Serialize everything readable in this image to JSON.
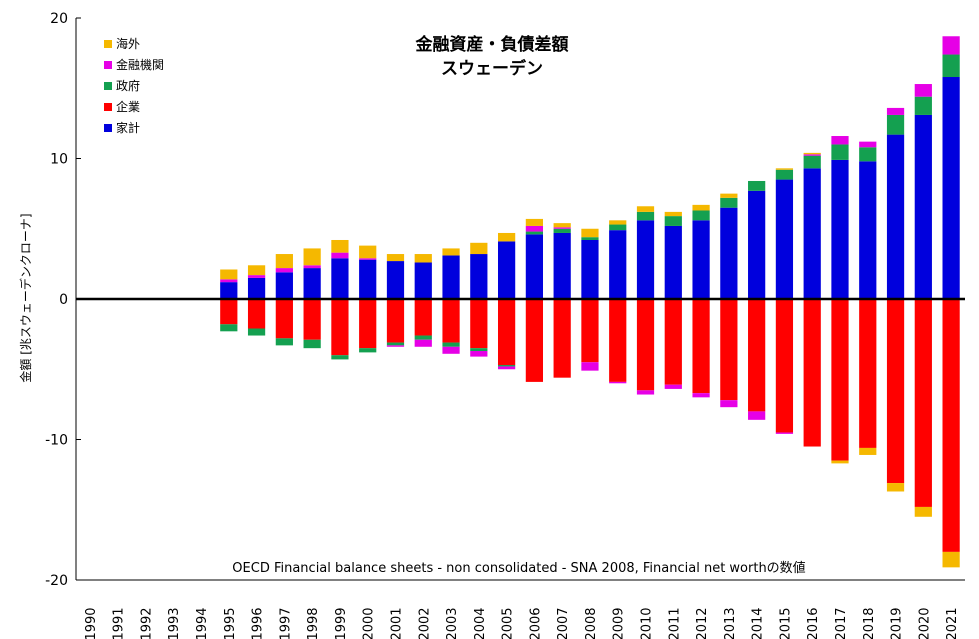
{
  "chart_data": {
    "type": "bar",
    "stacked": true,
    "title": "金融資産・負債差額",
    "subtitle": "スウェーデン",
    "ylabel": "金額 [兆スウェーデンクローナ]",
    "xlabel": "",
    "source_note": "OECD Financial balance sheets - non consolidated - SNA 2008, Financial net worthの数値",
    "ylim": [
      -20,
      20
    ],
    "yticks": [
      -20,
      -10,
      0,
      10,
      20
    ],
    "grid": false,
    "legend_position": "top-left",
    "categories": [
      "1990",
      "1991",
      "1992",
      "1993",
      "1994",
      "1995",
      "1996",
      "1997",
      "1998",
      "1999",
      "2000",
      "2001",
      "2002",
      "2003",
      "2004",
      "2005",
      "2006",
      "2007",
      "2008",
      "2009",
      "2010",
      "2011",
      "2012",
      "2013",
      "2014",
      "2015",
      "2016",
      "2017",
      "2018",
      "2019",
      "2020",
      "2021"
    ],
    "series": [
      {
        "name": "海外",
        "color": "#f5b800",
        "values": [
          null,
          null,
          null,
          null,
          null,
          0.7,
          0.7,
          1.0,
          1.2,
          0.9,
          0.9,
          0.5,
          0.6,
          0.5,
          0.8,
          0.6,
          0.5,
          0.3,
          0.6,
          0.3,
          0.4,
          0.3,
          0.4,
          0.3,
          0.0,
          0.1,
          0.1,
          -0.2,
          -0.5,
          -0.6,
          -0.7,
          -1.1
        ]
      },
      {
        "name": "金融機関",
        "color": "#e600e6",
        "values": [
          null,
          null,
          null,
          null,
          null,
          0.2,
          0.2,
          0.3,
          0.2,
          0.4,
          0.1,
          -0.1,
          -0.5,
          -0.5,
          -0.4,
          -0.2,
          0.4,
          0.1,
          -0.6,
          -0.1,
          -0.3,
          -0.3,
          -0.3,
          -0.5,
          -0.6,
          -0.1,
          0.1,
          0.6,
          0.4,
          0.5,
          0.9,
          1.3
        ]
      },
      {
        "name": "政府",
        "color": "#14a050",
        "values": [
          null,
          null,
          null,
          null,
          null,
          -0.5,
          -0.5,
          -0.5,
          -0.6,
          -0.3,
          -0.3,
          -0.2,
          -0.3,
          -0.3,
          -0.2,
          -0.1,
          0.2,
          0.3,
          0.2,
          0.4,
          0.6,
          0.7,
          0.7,
          0.7,
          0.7,
          0.7,
          0.9,
          1.1,
          1.0,
          1.4,
          1.3,
          1.6
        ]
      },
      {
        "name": "企業",
        "color": "#ff0000",
        "values": [
          null,
          null,
          null,
          null,
          null,
          -1.8,
          -2.1,
          -2.8,
          -2.9,
          -4.0,
          -3.5,
          -3.1,
          -2.6,
          -3.1,
          -3.5,
          -4.7,
          -5.9,
          -5.6,
          -4.5,
          -5.9,
          -6.5,
          -6.1,
          -6.7,
          -7.2,
          -8.0,
          -9.5,
          -10.5,
          -11.5,
          -10.6,
          -13.1,
          -14.8,
          -18.0
        ]
      },
      {
        "name": "家計",
        "color": "#0000dd",
        "values": [
          null,
          null,
          null,
          null,
          null,
          1.2,
          1.5,
          1.9,
          2.2,
          2.9,
          2.8,
          2.7,
          2.6,
          3.1,
          3.2,
          4.1,
          4.6,
          4.7,
          4.2,
          4.9,
          5.6,
          5.2,
          5.6,
          6.5,
          7.7,
          8.5,
          9.3,
          9.9,
          9.8,
          11.7,
          13.1,
          15.8
        ]
      }
    ]
  }
}
